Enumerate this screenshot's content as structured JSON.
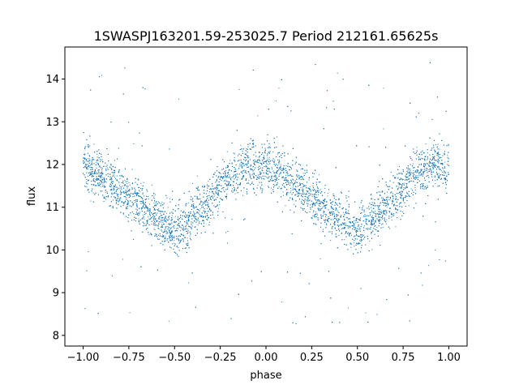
{
  "chart_data": {
    "type": "scatter",
    "title": "1SWASPJ163201.59-253025.7 Period 212161.65625s",
    "xlabel": "phase",
    "ylabel": "flux",
    "xlim": [
      -1.1,
      1.1
    ],
    "ylim": [
      7.75,
      14.75
    ],
    "x_ticks": [
      -1.0,
      -0.75,
      -0.5,
      -0.25,
      0.0,
      0.25,
      0.5,
      0.75,
      1.0
    ],
    "x_tick_labels": [
      "−1.00",
      "−0.75",
      "−0.50",
      "−0.25",
      "0.00",
      "0.25",
      "0.50",
      "0.75",
      "1.00"
    ],
    "y_ticks": [
      8,
      9,
      10,
      11,
      12,
      13,
      14
    ],
    "y_tick_labels": [
      "8",
      "9",
      "10",
      "11",
      "12",
      "13",
      "14"
    ],
    "grid": false,
    "marker_color": "#1f77b4",
    "phase_range": [
      -1.0,
      1.0
    ],
    "period_in_phase": 1.0,
    "light_curve_template": {
      "phase": [
        0.0,
        0.05,
        0.1,
        0.15,
        0.2,
        0.25,
        0.3,
        0.35,
        0.4,
        0.45,
        0.5,
        0.55,
        0.6,
        0.65,
        0.7,
        0.75,
        0.8,
        0.85,
        0.9,
        0.95,
        1.0
      ],
      "flux": [
        11.9,
        11.85,
        11.75,
        11.6,
        11.4,
        11.25,
        11.1,
        10.95,
        10.75,
        10.6,
        10.4,
        10.55,
        10.8,
        11.0,
        11.2,
        11.45,
        11.7,
        11.85,
        12.0,
        11.95,
        11.9
      ]
    },
    "flux_scatter_std": 0.28,
    "outlier_flux_range": [
      8.2,
      14.4
    ],
    "n_points": 9000
  }
}
